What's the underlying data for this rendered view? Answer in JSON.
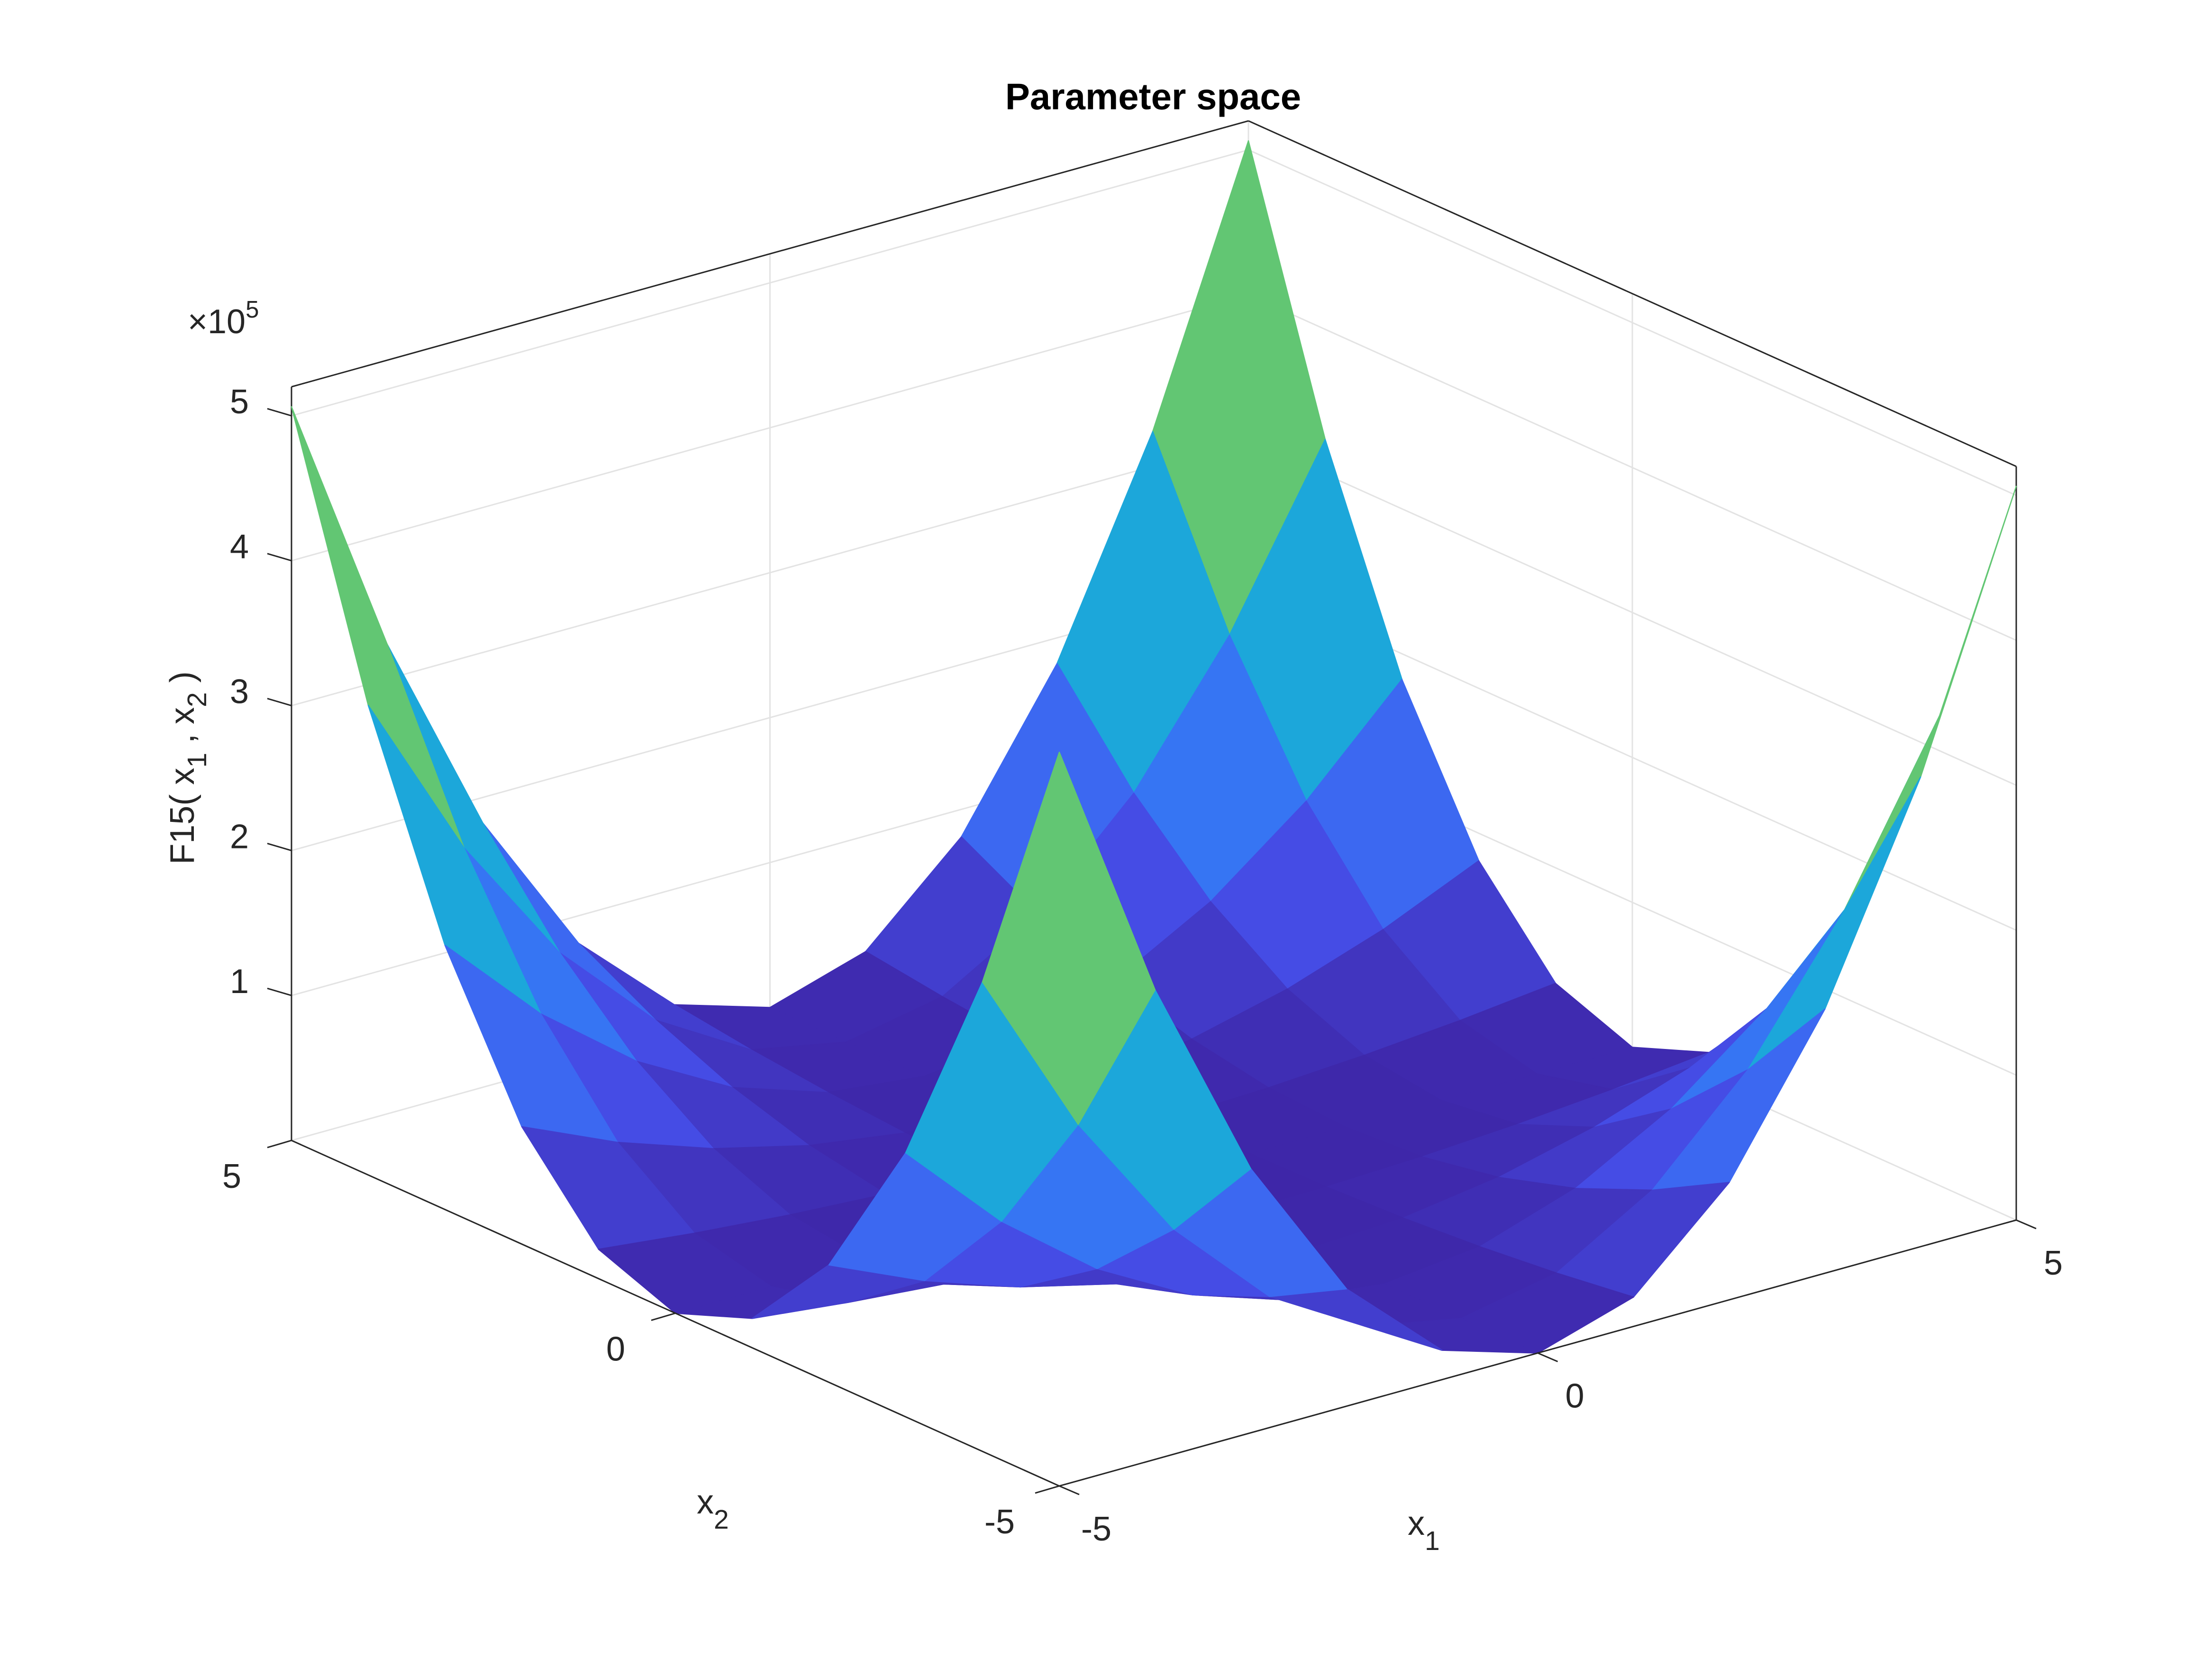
{
  "chart_data": {
    "type": "surface",
    "title": "Parameter space",
    "xlabel": [
      "x",
      "1"
    ],
    "ylabel": [
      "x",
      "2"
    ],
    "zlabel": [
      "F15( x",
      "1",
      " , x",
      "2",
      " )"
    ],
    "zscale": [
      "×10",
      "5"
    ],
    "x": [
      -5,
      -4,
      -3,
      -2,
      -1,
      0,
      1,
      2,
      3,
      4,
      5
    ],
    "y": [
      -5,
      -4,
      -3,
      -2,
      -1,
      0,
      1,
      2,
      3,
      4,
      5
    ],
    "z": [
      [
        506250,
        324000,
        182250,
        81000,
        20250,
        0,
        20250,
        81000,
        182250,
        324000,
        506250
      ],
      [
        324000,
        207360,
        116640,
        51840,
        12960,
        0,
        12960,
        51840,
        116640,
        207360,
        324000
      ],
      [
        182250,
        116640,
        65610,
        29160,
        7290,
        0,
        7290,
        29160,
        65610,
        116640,
        182250
      ],
      [
        81000,
        51840,
        29160,
        12960,
        3240,
        0,
        3240,
        12960,
        29160,
        51840,
        81000
      ],
      [
        20250,
        12960,
        7290,
        3240,
        810,
        0,
        810,
        3240,
        7290,
        12960,
        20250
      ],
      [
        0,
        0,
        0,
        0,
        0,
        0,
        0,
        0,
        0,
        0,
        0
      ],
      [
        20250,
        12960,
        7290,
        3240,
        810,
        0,
        810,
        3240,
        7290,
        12960,
        20250
      ],
      [
        81000,
        51840,
        29160,
        12960,
        3240,
        0,
        3240,
        12960,
        29160,
        51840,
        81000
      ],
      [
        182250,
        116640,
        65610,
        29160,
        7290,
        0,
        7290,
        29160,
        65610,
        116640,
        182250
      ],
      [
        324000,
        207360,
        116640,
        51840,
        12960,
        0,
        12960,
        51840,
        116640,
        207360,
        324000
      ],
      [
        506250,
        324000,
        182250,
        81000,
        20250,
        0,
        20250,
        81000,
        182250,
        324000,
        506250
      ]
    ],
    "xlim": [
      -5,
      5
    ],
    "ylim": [
      -5,
      5
    ],
    "zlim": [
      0,
      520000
    ],
    "xticks": [
      -5,
      0,
      5
    ],
    "yticks": [
      -5,
      0,
      5
    ],
    "zticks": [
      {
        "value": 100000,
        "label": "1"
      },
      {
        "value": 200000,
        "label": "2"
      },
      {
        "value": 300000,
        "label": "3"
      },
      {
        "value": 400000,
        "label": "4"
      },
      {
        "value": 500000,
        "label": "5"
      }
    ],
    "colormap": "parula",
    "grid": true
  }
}
